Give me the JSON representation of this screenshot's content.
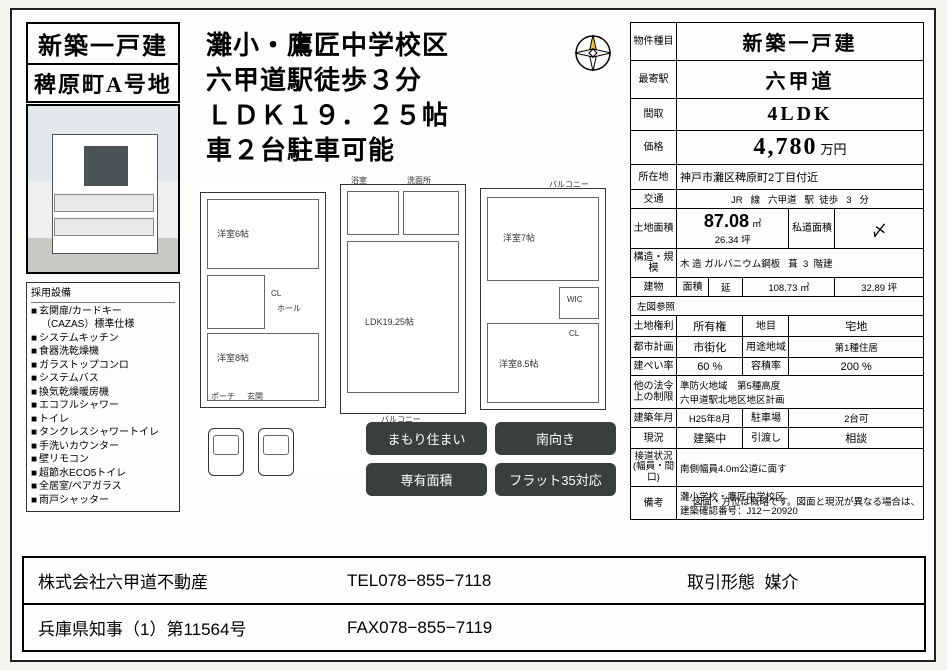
{
  "title": {
    "line1": "新築一戸建",
    "line2": "稗原町A号地"
  },
  "headline": {
    "l1": "灘小・鷹匠中学校区",
    "l2": "六甲道駅徒歩３分",
    "l3": "ＬＤＫ１９．２５帖",
    "l4": "車２台駐車可能"
  },
  "equipment": {
    "header": "採用設備",
    "items": [
      "玄関扉/カードキー",
      "（CAZAS）標準仕様",
      "システムキッチン",
      "食器洗乾燥機",
      "ガラストップコンロ",
      "システムバス",
      "換気乾燥暖房機",
      "エコフルシャワー",
      "トイレ",
      "タンクレスシャワートイレ",
      "手洗いカウンター",
      "壁リモコン",
      "超節水ECO5トイレ",
      "全居室/ペアガラス",
      "雨戸シャッター"
    ]
  },
  "pills": {
    "p1": "まもり住まい",
    "p2": "南向き",
    "p3": "専有面積",
    "p4": "フラット35対応"
  },
  "spec": {
    "type_lbl": "物件種目",
    "type_val": "新築一戸建",
    "station_lbl": "最寄駅",
    "station_val": "六甲道",
    "layout_lbl": "間取",
    "layout_val": "4LDK",
    "price_lbl": "価格",
    "price_num": "4,780",
    "price_unit": "万円",
    "addr_lbl": "所在地",
    "addr_val": "神戸市灘区稗原町2丁目付近",
    "transit_lbl": "交通",
    "transit_line": "JR",
    "transit_sen": "線",
    "transit_sta": "六甲道",
    "transit_eki": "駅",
    "transit_walk": "徒歩",
    "transit_min": "3",
    "transit_fun": "分",
    "land_lbl": "土地面積",
    "land_val": "87.08",
    "land_unit": "㎡",
    "land_tsubo": "26.34 坪",
    "road_lbl": "私道面積",
    "road_val": "〆",
    "struct_lbl": "構造・規模",
    "struct_wood": "木",
    "struct_mat": "造 ガルバニウム鋼板",
    "struct_roof": "葺",
    "struct_fl": "3",
    "struct_kai": "階建",
    "bldg_lbl": "建物",
    "bldg_area_lbl": "面積",
    "bldg_nobe": "延",
    "bldg_val": "108.73 ㎡",
    "bldg_tsubo": "32.89 坪",
    "ref_lbl": "左図参照",
    "landright_lbl": "土地権利",
    "landright_val": "所有権",
    "chimoku_lbl": "地目",
    "chimoku_val": "宅地",
    "cityplan_lbl": "都市計画",
    "cityplan_val": "市街化",
    "zone_lbl": "用途地域",
    "zone_val": "第1種住居",
    "kenpei_lbl": "建ぺい率",
    "kenpei_val": "60",
    "pct": "%",
    "yoseki_lbl": "容積率",
    "yoseki_val": "200",
    "law_lbl": "他の法令上の制限",
    "law_val": "準防火地域　第5種高度\n六甲道駅北地区地区計画",
    "built_lbl": "建築年月",
    "built_val": "H25年8月",
    "park_lbl": "駐車場",
    "park_val": "2台可",
    "status_lbl": "現況",
    "status_val": "建築中",
    "deliv_lbl": "引渡し",
    "deliv_val": "相談",
    "road2_lbl": "接道状況(幅員・間口)",
    "road2_val": "南側幅員4.0m公道に面す",
    "notes_lbl": "備考",
    "notes_val": "灘小学校・鷹匠中学校区\n建築確認番号：J12－20920"
  },
  "disclaimer": "図面・方位は概略です。図面と現況が異なる場合は、",
  "contact": {
    "company": "株式会社六甲道不動産",
    "tel_lbl": "TEL",
    "tel": "078−855−7118",
    "deal_lbl": "取引形態",
    "deal_val": "媒介",
    "license": "兵庫県知事（1）第11564号",
    "fax_lbl": "FAX",
    "fax": "078−855−7119"
  },
  "plan_labels": {
    "balcony": "バルコニー",
    "hall": "ホール",
    "porch": "ポーチ",
    "genkan": "玄関",
    "yo6": "洋室6帖",
    "yo8": "洋室8帖",
    "yo7": "洋室7帖",
    "yo85": "洋室8.5帖",
    "ldk": "LDK19.25帖",
    "bath": "浴室",
    "lav": "洗面所",
    "cl": "CL",
    "wic": "WIC"
  }
}
